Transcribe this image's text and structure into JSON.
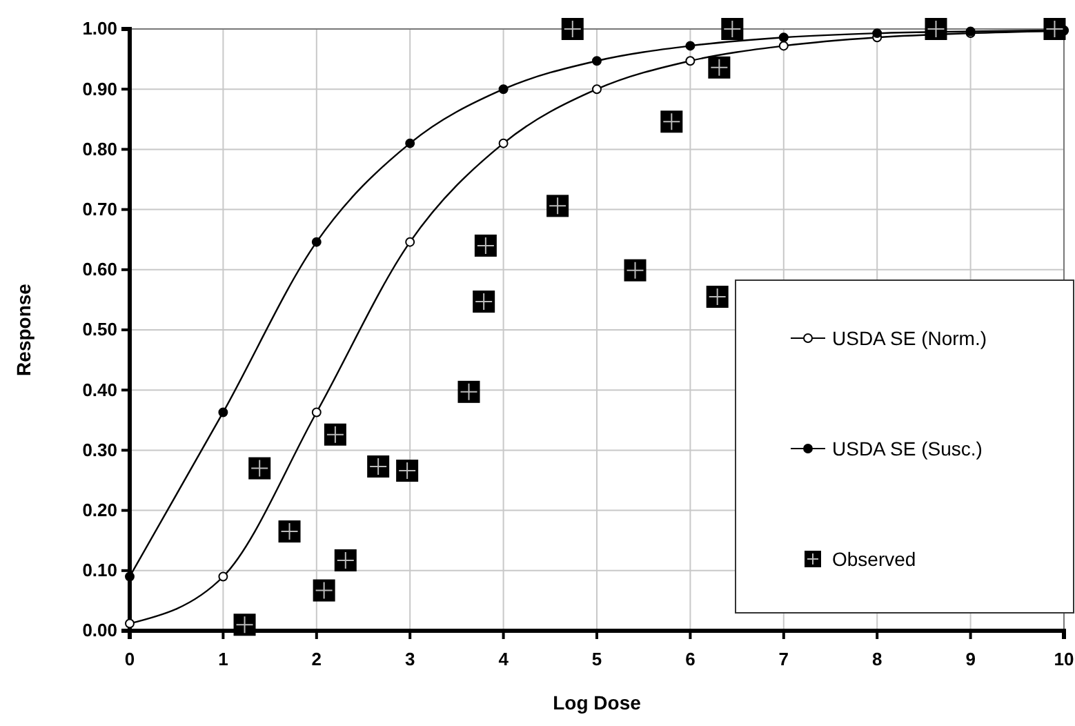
{
  "chart_data": {
    "type": "line",
    "xlabel": "Log Dose",
    "ylabel": "Response",
    "xlim": [
      0,
      10
    ],
    "xticks": [
      0,
      1,
      2,
      3,
      4,
      5,
      6,
      7,
      8,
      9,
      10
    ],
    "ylim": [
      0,
      1
    ],
    "yticks": [
      {
        "value": 0,
        "label": "0.00"
      },
      {
        "value": 0.1,
        "label": "0.10"
      },
      {
        "value": 0.2,
        "label": "0.20"
      },
      {
        "value": 0.3,
        "label": "0.30"
      },
      {
        "value": 0.4,
        "label": "0.40"
      },
      {
        "value": 0.5,
        "label": "0.50"
      },
      {
        "value": 0.6,
        "label": "0.60"
      },
      {
        "value": 0.7,
        "label": "0.70"
      },
      {
        "value": 0.8,
        "label": "0.80"
      },
      {
        "value": 0.9,
        "label": "0.90"
      },
      {
        "value": 1,
        "label": "1.00"
      }
    ],
    "grid": true,
    "legend": "bottom right",
    "series": [
      {
        "name": "USDA SE (Norm.)",
        "type": "line",
        "marker": "circle",
        "color": "#000000",
        "x": [
          0,
          1,
          2,
          3,
          4,
          5,
          6,
          7,
          8,
          9,
          10
        ],
        "values": [
          0.012,
          0.09,
          0.363,
          0.646,
          0.81,
          0.9,
          0.947,
          0.972,
          0.986,
          0.993,
          0.997
        ]
      },
      {
        "name": "USDA SE (Susc.)",
        "type": "line",
        "marker": "circle",
        "color": "#000000",
        "x": [
          0,
          1,
          2,
          3,
          4,
          5,
          6,
          7,
          8,
          9,
          10
        ],
        "values": [
          0.09,
          0.363,
          0.646,
          0.81,
          0.9,
          0.947,
          0.972,
          0.986,
          0.993,
          0.996,
          0.998
        ]
      },
      {
        "name": "Observed",
        "type": "scatter",
        "marker": "square",
        "color": "#000000",
        "x": [
          1.23,
          1.39,
          1.71,
          2.08,
          2.2,
          2.31,
          2.66,
          2.97,
          3.63,
          3.79,
          3.81,
          4.58,
          4.74,
          5.41,
          5.8,
          6.29,
          6.31,
          6.45,
          8.63,
          9.9
        ],
        "values": [
          0.01,
          0.27,
          0.165,
          0.067,
          0.326,
          0.117,
          0.273,
          0.266,
          0.397,
          0.547,
          0.64,
          0.706,
          1.0,
          0.599,
          0.846,
          0.555,
          0.936,
          1.0,
          1.0,
          1.0
        ]
      }
    ]
  }
}
